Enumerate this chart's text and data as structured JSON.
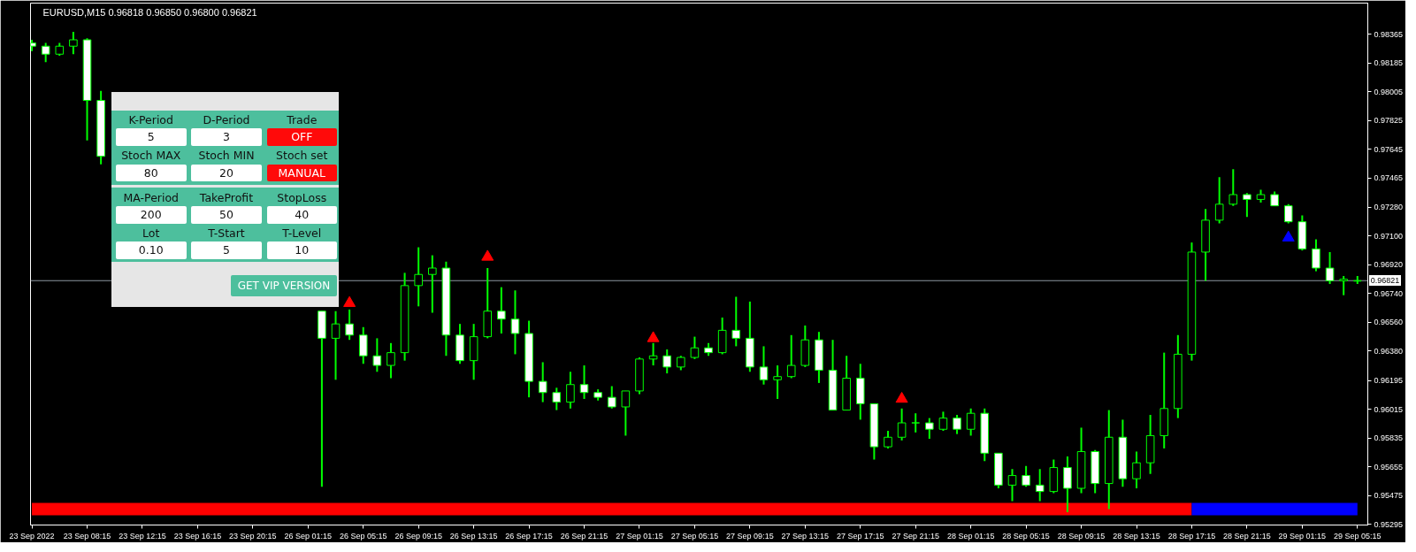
{
  "chart_data": {
    "type": "candlestick",
    "title": "EURUSD,M15 0.96818 0.96850 0.96800 0.96821",
    "color": "#00ff00",
    "categories": [
      "23 Sep 2022",
      null,
      null,
      null,
      "23 Sep 08:15",
      null,
      null,
      null,
      "23 Sep 12:15",
      null,
      null,
      null,
      "23 Sep 16:15",
      null,
      null,
      null,
      "23 Sep 20:15",
      null,
      null,
      null,
      "26 Sep 01:15",
      null,
      null,
      null,
      "26 Sep 05:15",
      null,
      null,
      null,
      "26 Sep 09:15",
      null,
      null,
      null,
      "26 Sep 13:15",
      null,
      null,
      null,
      "26 Sep 17:15",
      null,
      null,
      null,
      "26 Sep 21:15",
      null,
      null,
      null,
      "27 Sep 01:15",
      null,
      null,
      null,
      "27 Sep 05:15",
      null,
      null,
      null,
      "27 Sep 09:15",
      null,
      null,
      null,
      "27 Sep 13:15",
      null,
      null,
      null,
      "27 Sep 17:15",
      null,
      null,
      null,
      "27 Sep 21:15",
      null,
      null,
      null,
      "28 Sep 01:15",
      null,
      null,
      null,
      "28 Sep 05:15",
      null,
      null,
      null,
      "28 Sep 09:15",
      null,
      null,
      null,
      "28 Sep 13:15",
      null,
      null,
      null,
      "28 Sep 17:15",
      null,
      null,
      null,
      "28 Sep 21:15",
      null,
      null,
      null,
      "29 Sep 01:15",
      null,
      null,
      null,
      "29 Sep 05:15"
    ],
    "ohlc": [
      [
        0.9831,
        0.9833,
        0.9826,
        0.9829
      ],
      [
        0.9829,
        0.9831,
        0.9819,
        0.9824
      ],
      [
        0.9824,
        0.9831,
        0.9823,
        0.9829
      ],
      [
        0.9829,
        0.9838,
        0.9824,
        0.9833
      ],
      [
        0.9833,
        0.9834,
        0.977,
        0.9795
      ],
      [
        0.9795,
        0.9801,
        0.9755,
        0.976
      ],
      null,
      null,
      null,
      null,
      null,
      null,
      null,
      null,
      null,
      null,
      null,
      null,
      null,
      null,
      null,
      [
        0.9663,
        0.9663,
        0.9553,
        0.9646
      ],
      [
        0.9646,
        0.9663,
        0.962,
        0.9655
      ],
      [
        0.9655,
        0.9664,
        0.9645,
        0.9648
      ],
      [
        0.9648,
        0.9653,
        0.963,
        0.9635
      ],
      [
        0.9635,
        0.9646,
        0.9625,
        0.9629
      ],
      [
        0.9629,
        0.9643,
        0.9621,
        0.9637
      ],
      [
        0.9637,
        0.9687,
        0.9632,
        0.9679
      ],
      [
        0.9679,
        0.9703,
        0.9666,
        0.9686
      ],
      [
        0.9686,
        0.9698,
        0.9662,
        0.969
      ],
      [
        0.969,
        0.9694,
        0.9635,
        0.9648
      ],
      [
        0.9648,
        0.9655,
        0.963,
        0.9632
      ],
      [
        0.9632,
        0.9655,
        0.962,
        0.9647
      ],
      [
        0.9647,
        0.969,
        0.9646,
        0.9663
      ],
      [
        0.9663,
        0.9678,
        0.9649,
        0.9658
      ],
      [
        0.9658,
        0.9676,
        0.9636,
        0.9649
      ],
      [
        0.9649,
        0.9657,
        0.9609,
        0.9619
      ],
      [
        0.9619,
        0.9631,
        0.9606,
        0.9612
      ],
      [
        0.9612,
        0.9615,
        0.9601,
        0.9606
      ],
      [
        0.9606,
        0.9625,
        0.9602,
        0.9617
      ],
      [
        0.9617,
        0.9629,
        0.9608,
        0.9612
      ],
      [
        0.9612,
        0.9614,
        0.9607,
        0.9609
      ],
      [
        0.9609,
        0.9616,
        0.9602,
        0.9603
      ],
      [
        0.9603,
        0.9613,
        0.9585,
        0.9613
      ],
      [
        0.9613,
        0.9634,
        0.9611,
        0.9633
      ],
      [
        0.9633,
        0.9643,
        0.9629,
        0.9635
      ],
      [
        0.9635,
        0.9639,
        0.9624,
        0.9628
      ],
      [
        0.9628,
        0.9635,
        0.9626,
        0.9634
      ],
      [
        0.9634,
        0.9647,
        0.9633,
        0.964
      ],
      [
        0.964,
        0.9643,
        0.9635,
        0.9637
      ],
      [
        0.9637,
        0.9659,
        0.9636,
        0.9651
      ],
      [
        0.9651,
        0.9672,
        0.9641,
        0.9646
      ],
      [
        0.9646,
        0.9669,
        0.9625,
        0.9628
      ],
      [
        0.9628,
        0.9641,
        0.9617,
        0.962
      ],
      [
        0.962,
        0.9629,
        0.9608,
        0.9622
      ],
      [
        0.9622,
        0.9648,
        0.9621,
        0.9629
      ],
      [
        0.9629,
        0.9654,
        0.9628,
        0.9645
      ],
      [
        0.9645,
        0.965,
        0.9618,
        0.9626
      ],
      [
        0.9626,
        0.9645,
        0.9601,
        0.9601
      ],
      [
        0.9601,
        0.9635,
        0.9601,
        0.9621
      ],
      [
        0.9621,
        0.963,
        0.9595,
        0.9605
      ],
      [
        0.9605,
        0.9605,
        0.957,
        0.9578
      ],
      [
        0.9578,
        0.9588,
        0.9577,
        0.9584
      ],
      [
        0.9584,
        0.9602,
        0.9582,
        0.9593
      ],
      [
        0.9593,
        0.9599,
        0.9587,
        0.9593
      ],
      [
        0.9593,
        0.9596,
        0.9583,
        0.9589
      ],
      [
        0.9589,
        0.96,
        0.9588,
        0.9596
      ],
      [
        0.9596,
        0.9598,
        0.9586,
        0.9589
      ],
      [
        0.9589,
        0.9602,
        0.9585,
        0.9599
      ],
      [
        0.9599,
        0.9602,
        0.9569,
        0.9574
      ],
      [
        0.9574,
        0.9574,
        0.9552,
        0.9554
      ],
      [
        0.9554,
        0.9564,
        0.9544,
        0.956
      ],
      [
        0.956,
        0.9566,
        0.9553,
        0.9554
      ],
      [
        0.9554,
        0.9564,
        0.9544,
        0.955
      ],
      [
        0.955,
        0.957,
        0.9549,
        0.9565
      ],
      [
        0.9565,
        0.9572,
        0.9537,
        0.9552
      ],
      [
        0.9552,
        0.959,
        0.9549,
        0.9575
      ],
      [
        0.9575,
        0.9576,
        0.9549,
        0.9555
      ],
      [
        0.9555,
        0.9601,
        0.9539,
        0.9584
      ],
      [
        0.9584,
        0.9595,
        0.9553,
        0.9558
      ],
      [
        0.9558,
        0.9575,
        0.9552,
        0.9568
      ],
      [
        0.9568,
        0.9598,
        0.9561,
        0.9585
      ],
      [
        0.9585,
        0.9637,
        0.9577,
        0.9602
      ],
      [
        0.9602,
        0.9648,
        0.9596,
        0.9636
      ],
      [
        0.9636,
        0.9706,
        0.9632,
        0.97
      ],
      [
        0.97,
        0.9727,
        0.9682,
        0.972
      ],
      [
        0.972,
        0.9747,
        0.9718,
        0.973
      ],
      [
        0.973,
        0.9752,
        0.9729,
        0.9736
      ],
      [
        0.9736,
        0.9737,
        0.9722,
        0.9733
      ],
      [
        0.9733,
        0.9739,
        0.9731,
        0.9736
      ],
      [
        0.9736,
        0.9738,
        0.9729,
        0.9729
      ],
      [
        0.9729,
        0.973,
        0.9718,
        0.9719
      ],
      [
        0.9719,
        0.9723,
        0.9701,
        0.9702
      ],
      [
        0.9702,
        0.9708,
        0.9688,
        0.969
      ],
      [
        0.969,
        0.97,
        0.968,
        0.9682
      ],
      [
        0.9682,
        0.9685,
        0.9673,
        0.9683
      ],
      [
        0.96818,
        0.9685,
        0.968,
        0.96821
      ]
    ],
    "series": [
      {
        "type": "scatter",
        "color": "#ff0000",
        "marker": "triangle",
        "values": [
          null,
          null,
          null,
          null,
          null,
          null,
          null,
          null,
          null,
          null,
          null,
          null,
          null,
          null,
          null,
          null,
          null,
          null,
          null,
          null,
          null,
          null,
          null,
          0.9668,
          null,
          null,
          null,
          null,
          null,
          null,
          null,
          null,
          null,
          0.9697,
          null,
          null,
          null,
          null,
          null,
          null,
          null,
          null,
          null,
          null,
          null,
          0.9646,
          null,
          null,
          null,
          null,
          null,
          null,
          null,
          null,
          null,
          null,
          null,
          null,
          null,
          null,
          null,
          null,
          null,
          0.9608,
          null,
          null,
          null,
          null,
          null,
          null,
          null,
          null,
          null,
          null,
          null,
          null,
          null,
          null,
          null,
          null,
          null,
          null,
          null,
          null,
          null,
          null,
          null,
          null,
          null,
          null,
          null,
          null,
          null,
          null,
          null,
          null,
          null
        ]
      },
      {
        "type": "scatter",
        "color": "#0000ff",
        "marker": "triangle",
        "values": [
          null,
          null,
          null,
          null,
          null,
          null,
          null,
          null,
          null,
          null,
          null,
          null,
          null,
          null,
          null,
          null,
          null,
          null,
          null,
          null,
          null,
          null,
          null,
          null,
          null,
          null,
          null,
          null,
          null,
          null,
          null,
          null,
          null,
          null,
          null,
          null,
          null,
          null,
          null,
          null,
          null,
          null,
          null,
          null,
          null,
          null,
          null,
          null,
          null,
          null,
          null,
          null,
          null,
          null,
          null,
          null,
          null,
          null,
          null,
          null,
          null,
          null,
          null,
          null,
          null,
          null,
          null,
          null,
          null,
          null,
          null,
          null,
          null,
          null,
          null,
          null,
          null,
          null,
          null,
          null,
          null,
          null,
          null,
          null,
          null,
          null,
          null,
          null,
          null,
          null,
          null,
          0.9709,
          null,
          null,
          null,
          null,
          null
        ]
      },
      {
        "type": "line",
        "color": "#ff0000",
        "values": [
          0.9539,
          0.9539,
          0.9539,
          0.9539,
          0.9539,
          0.9539,
          0.9539,
          0.9539,
          0.9539,
          0.9539,
          0.9539,
          0.9539,
          0.9539,
          0.9539,
          0.9539,
          0.9539,
          0.9539,
          0.9539,
          0.9539,
          0.9539,
          0.9539,
          0.9539,
          0.9539,
          0.9539,
          0.9539,
          0.9539,
          0.9539,
          0.9539,
          0.9539,
          0.9539,
          0.9539,
          0.9539,
          0.9539,
          0.9539,
          0.9539,
          0.9539,
          0.9539,
          0.9539,
          0.9539,
          0.9539,
          0.9539,
          0.9539,
          0.9539,
          0.9539,
          0.9539,
          0.9539,
          0.9539,
          0.9539,
          0.9539,
          0.9539,
          0.9539,
          0.9539,
          0.9539,
          0.9539,
          0.9539,
          0.9539,
          0.9539,
          0.9539,
          0.9539,
          0.9539,
          0.9539,
          0.9539,
          0.9539,
          0.9539,
          0.9539,
          0.9539,
          0.9539,
          0.9539,
          0.9539,
          0.9539,
          0.9539,
          0.9539,
          0.9539,
          0.9539,
          0.9539,
          0.9539,
          0.9539,
          0.9539,
          0.9539,
          0.9539,
          0.9539,
          0.9539,
          0.9539,
          0.9539,
          0.9539,
          null,
          null,
          null,
          null,
          null,
          null,
          null,
          null,
          null,
          null,
          null,
          null
        ]
      },
      {
        "type": "line",
        "color": "#0000ff",
        "values": [
          null,
          null,
          null,
          null,
          null,
          null,
          null,
          null,
          null,
          null,
          null,
          null,
          null,
          null,
          null,
          null,
          null,
          null,
          null,
          null,
          null,
          null,
          null,
          null,
          null,
          null,
          null,
          null,
          null,
          null,
          null,
          null,
          null,
          null,
          null,
          null,
          null,
          null,
          null,
          null,
          null,
          null,
          null,
          null,
          null,
          null,
          null,
          null,
          null,
          null,
          null,
          null,
          null,
          null,
          null,
          null,
          null,
          null,
          null,
          null,
          null,
          null,
          null,
          null,
          null,
          null,
          null,
          null,
          null,
          null,
          null,
          null,
          null,
          null,
          null,
          null,
          null,
          null,
          null,
          null,
          null,
          null,
          null,
          null,
          0.9539,
          0.9539,
          0.9539,
          0.9539,
          0.9539,
          0.9539,
          0.9539,
          0.9539,
          0.9539,
          0.9539,
          0.9539,
          0.9539,
          0.9539
        ]
      }
    ],
    "ylim": [
      0.9529,
      0.9856
    ],
    "yticks": [
      0.98365,
      0.98185,
      0.98005,
      0.97825,
      0.97645,
      0.97465,
      {
        "value": 0.9728,
        "label": "0.97280"
      },
      {
        "value": 0.971,
        "label": "0.97100"
      },
      {
        "value": 0.9692,
        "label": "0.96920"
      },
      {
        "value": 0.9674,
        "label": "0.96740"
      },
      {
        "value": 0.9656,
        "label": "0.96560"
      },
      {
        "value": 0.9638,
        "label": "0.96380"
      },
      0.96195,
      0.96015,
      0.95835,
      0.95655,
      0.95475,
      0.95295
    ],
    "ref_lines": [
      {
        "axis": "y",
        "value": 0.96821,
        "label": "0.96821",
        "color": "#8c96a0"
      }
    ],
    "annotations": [
      "K-Period",
      "5",
      "D-Period",
      "3",
      "Trade",
      "OFF",
      "Stoch MAX",
      "80",
      "Stoch MIN",
      "20",
      "Stoch set",
      "MANUAL",
      "MA-Period",
      "200",
      "TakeProfit",
      "50",
      "StopLoss",
      "40",
      "Lot",
      "0.10",
      "T-Start",
      "5",
      "T-Level",
      "10",
      "GET VIP VERSION"
    ]
  }
}
